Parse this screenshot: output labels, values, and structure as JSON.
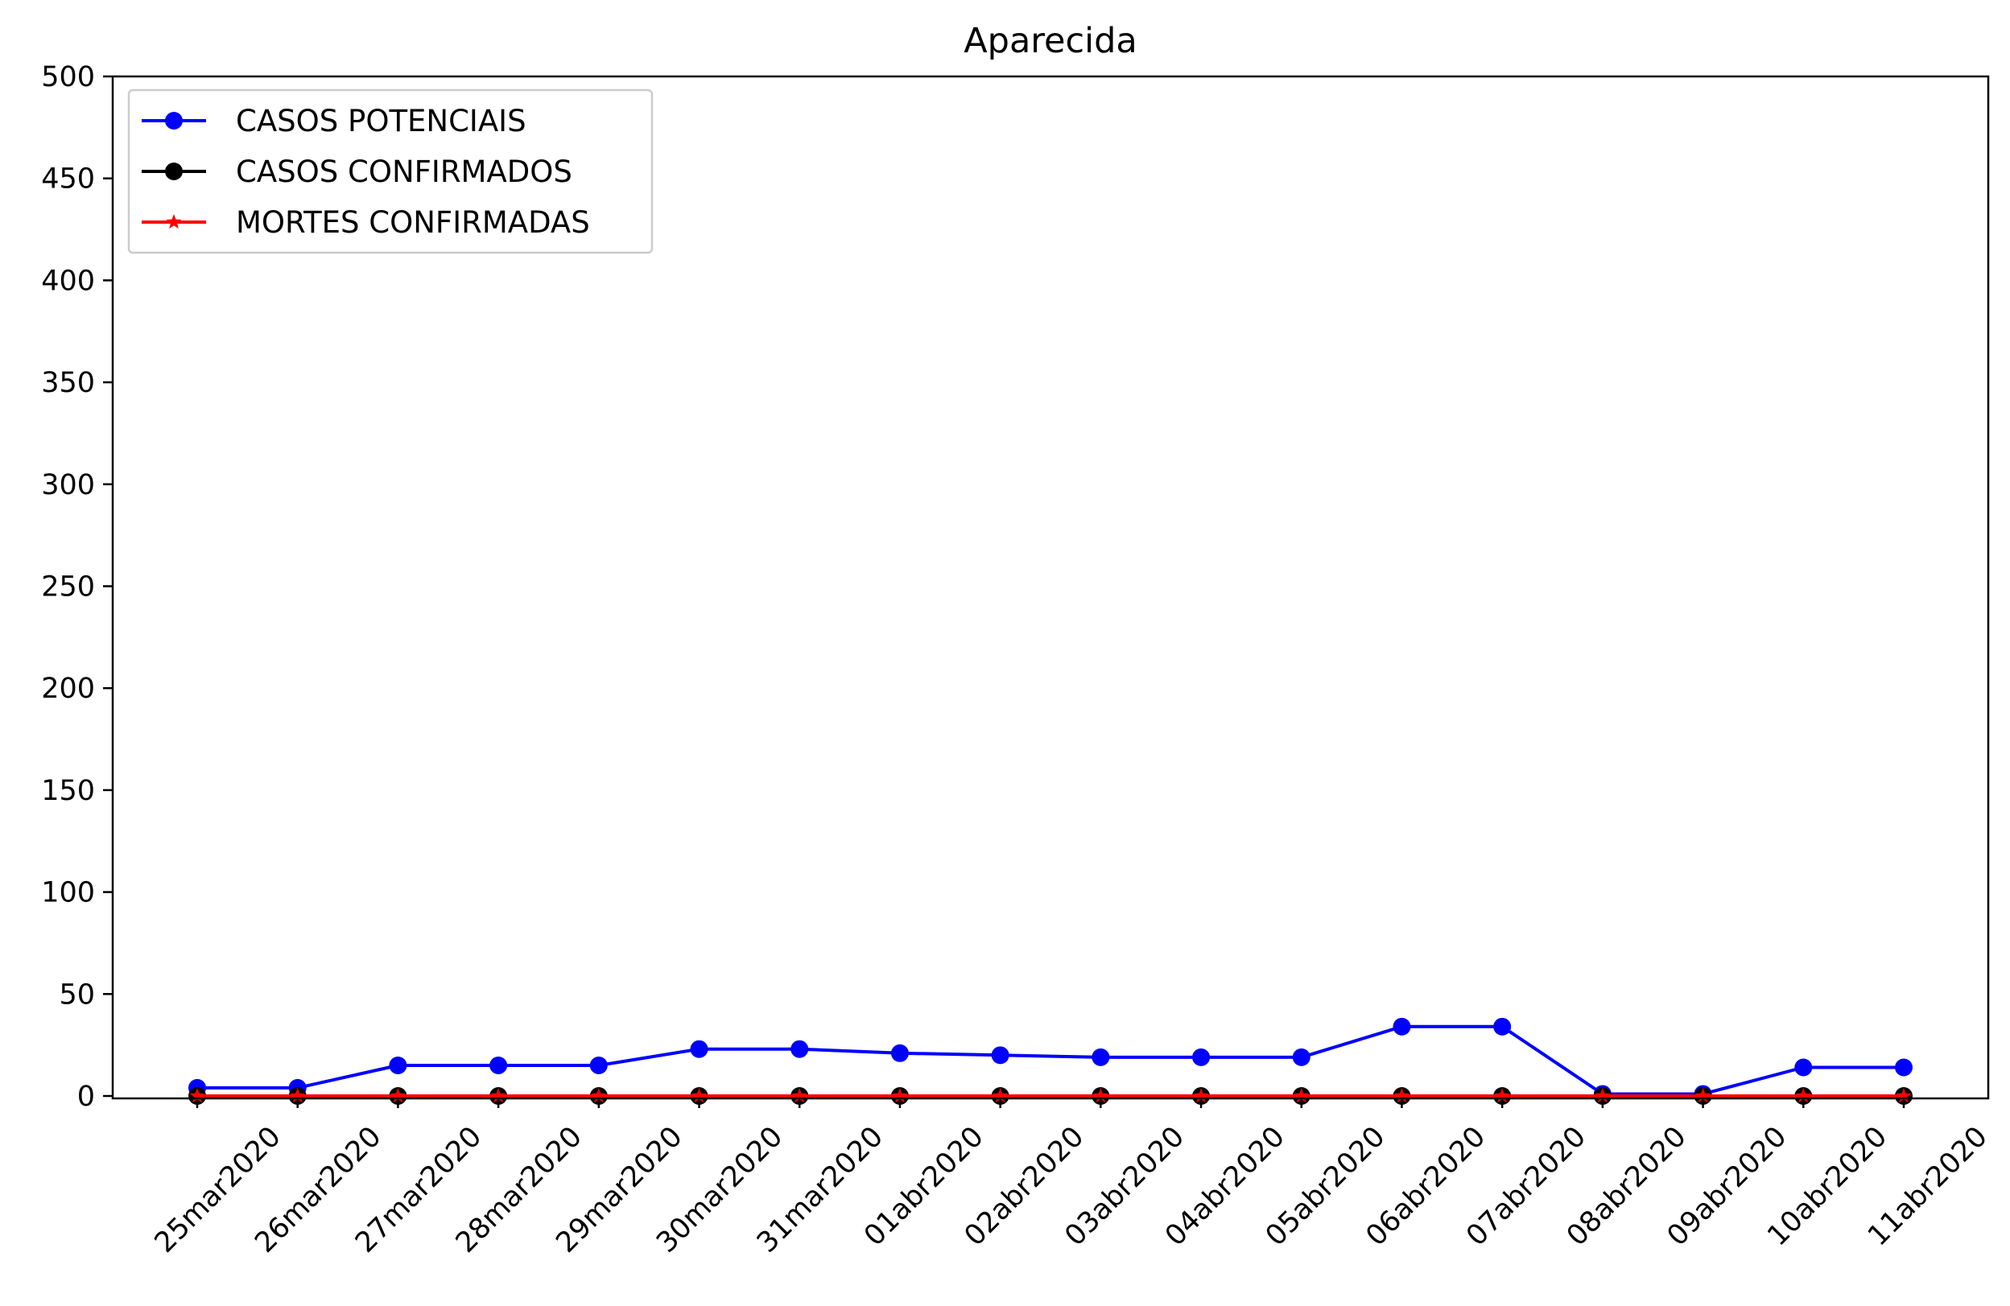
{
  "chart_data": {
    "type": "line",
    "title": "Aparecida",
    "xlabel": "",
    "ylabel": "",
    "categories": [
      "25mar2020",
      "26mar2020",
      "27mar2020",
      "28mar2020",
      "29mar2020",
      "30mar2020",
      "31mar2020",
      "01abr2020",
      "02abr2020",
      "03abr2020",
      "04abr2020",
      "05abr2020",
      "06abr2020",
      "07abr2020",
      "08abr2020",
      "09abr2020",
      "10abr2020",
      "11abr2020"
    ],
    "ylim": [
      0,
      500
    ],
    "yticks": [
      0,
      50,
      100,
      150,
      200,
      250,
      300,
      350,
      400,
      450,
      500
    ],
    "grid": false,
    "legend_position": "top-left",
    "series": [
      {
        "name": "CASOS POTENCIAIS",
        "color": "#0000ff",
        "marker": "circle",
        "values": [
          4,
          4,
          15,
          15,
          15,
          23,
          23,
          21,
          20,
          19,
          19,
          19,
          34,
          34,
          1,
          1,
          14,
          14
        ]
      },
      {
        "name": "CASOS CONFIRMADOS",
        "color": "#000000",
        "marker": "circle",
        "values": [
          0,
          0,
          0,
          0,
          0,
          0,
          0,
          0,
          0,
          0,
          0,
          0,
          0,
          0,
          0,
          0,
          0,
          0
        ]
      },
      {
        "name": "MORTES CONFIRMADAS",
        "color": "#ff0000",
        "marker": "star",
        "values": [
          0,
          0,
          0,
          0,
          0,
          0,
          0,
          0,
          0,
          0,
          0,
          0,
          0,
          0,
          0,
          0,
          0,
          0
        ]
      }
    ]
  }
}
